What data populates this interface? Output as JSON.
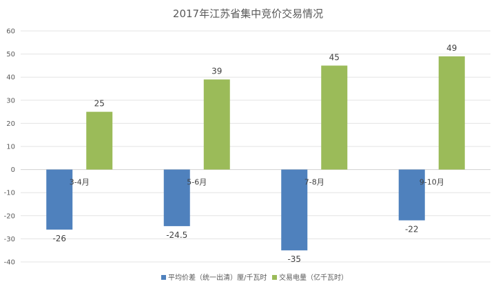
{
  "chart_data": {
    "type": "bar",
    "title": "2017年江苏省集中竞价交易情况",
    "categories": [
      "3-4月",
      "5-6月",
      "7-8月",
      "9-10月"
    ],
    "series": [
      {
        "name": "平均价差（统一出清）厘/千瓦时",
        "values": [
          -26,
          -24.5,
          -35,
          -22
        ],
        "color": "#4f81bd"
      },
      {
        "name": "交易电量（亿千瓦时）",
        "values": [
          25,
          39,
          45,
          49
        ],
        "color": "#9bbb59"
      }
    ],
    "ylim": [
      -40,
      60
    ],
    "yticks": [
      60,
      50,
      40,
      30,
      20,
      10,
      0,
      -10,
      -20,
      -30,
      -40
    ],
    "grid": true,
    "legend_position": "bottom"
  }
}
